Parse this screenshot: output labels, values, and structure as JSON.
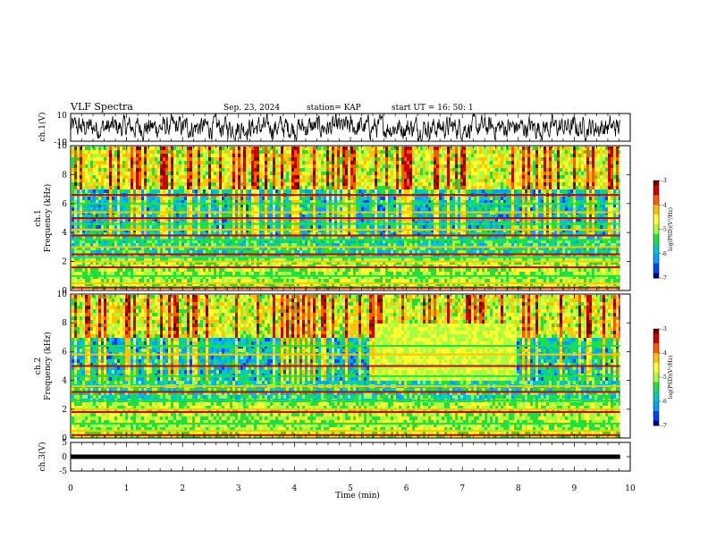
{
  "header": {
    "title": "VLF Spectra",
    "date": "Sep. 23, 2024",
    "station": "station= KAP",
    "start": "start  UT =   16: 50: 1"
  },
  "chart_data": [
    {
      "type": "line",
      "name": "ch1-waveform",
      "ylabel": "ch.1(V)",
      "ylim": [
        -10,
        10
      ],
      "yticks": [
        "10",
        "-10"
      ],
      "x_range_min": [
        0,
        9.8
      ],
      "description_values": "noisy waveform around 0 V"
    },
    {
      "type": "heatmap",
      "name": "ch1-spectrogram",
      "ylabel": "ch.1",
      "ylabel2": "Frequency (kHz)",
      "ylim": [
        0,
        10
      ],
      "yticks": [
        "0",
        "2",
        "4",
        "6",
        "8",
        "10"
      ],
      "colorbar": {
        "label": "log(PSD)(V²/Hz)",
        "ticks": [
          "-3",
          "-4",
          "-5",
          "-6",
          "-7"
        ],
        "range": [
          -7,
          -3
        ]
      },
      "bands_khz": [
        0.2,
        0.5,
        1.0,
        1.6,
        2.0,
        2.3,
        2.5,
        3.0,
        3.5,
        3.8,
        4.2,
        4.6,
        5.0,
        5.4,
        6.0,
        6.6
      ]
    },
    {
      "type": "heatmap",
      "name": "ch2-spectrogram",
      "ylabel": "ch.2",
      "ylabel2": "Frequency (kHz)",
      "ylim": [
        0,
        10
      ],
      "yticks": [
        "0",
        "2",
        "4",
        "6",
        "8",
        "10"
      ],
      "colorbar": {
        "label": "log(PSD)(V²/Hz)",
        "ticks": [
          "-3",
          "-4",
          "-5",
          "-6",
          "-7"
        ],
        "range": [
          -7,
          -3
        ]
      },
      "bands_khz": [
        0.2,
        0.5,
        1.0,
        1.8,
        2.0,
        2.6,
        3.2,
        3.6,
        4.3,
        5.0,
        5.8,
        6.4
      ]
    },
    {
      "type": "line",
      "name": "ch3-waveform",
      "ylabel": "ch.3(V)",
      "ylim": [
        -5,
        5
      ],
      "yticks": [
        "5",
        "0",
        "-5"
      ],
      "level_v": 0
    }
  ],
  "xaxis": {
    "label": "Time (min)",
    "ticks": [
      "0",
      "1",
      "2",
      "3",
      "4",
      "5",
      "6",
      "7",
      "8",
      "9",
      "10"
    ],
    "range": [
      0,
      10
    ],
    "data_end": 9.82
  },
  "colors": {
    "palette": [
      "#7a0000",
      "#d10000",
      "#ff5a00",
      "#ffc400",
      "#ffff30",
      "#a8ff40",
      "#20e040",
      "#00c8c8",
      "#00a0ff",
      "#0040ff",
      "#000080"
    ]
  }
}
